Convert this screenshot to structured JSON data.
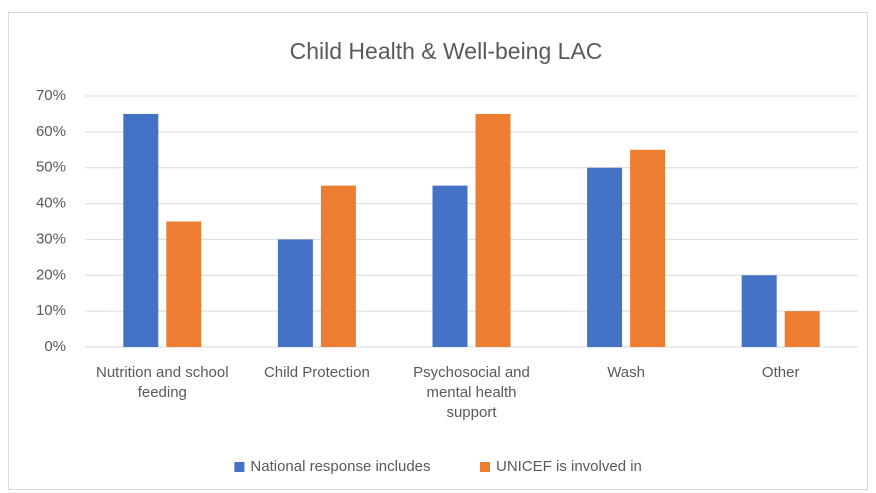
{
  "chart_data": {
    "type": "bar",
    "title": "Child Health & Well-being LAC",
    "categories": [
      "Nutrition and school feeding",
      "Child Protection",
      "Psychosocial and mental health support",
      "Wash",
      "Other"
    ],
    "series": [
      {
        "name": "National response includes",
        "color": "#4472c4",
        "values": [
          65,
          30,
          45,
          50,
          20
        ]
      },
      {
        "name": "UNICEF is involved in",
        "color": "#ed7d31",
        "values": [
          35,
          45,
          65,
          55,
          10
        ]
      }
    ],
    "ylim": [
      0,
      70
    ],
    "yticks": [
      {
        "value": 0,
        "label": "0%"
      },
      {
        "value": 10,
        "label": "10%"
      },
      {
        "value": 20,
        "label": "20%"
      },
      {
        "value": 30,
        "label": "30%"
      },
      {
        "value": 40,
        "label": "40%"
      },
      {
        "value": 50,
        "label": "50%"
      },
      {
        "value": 60,
        "label": "60%"
      },
      {
        "value": 70,
        "label": "70%"
      }
    ],
    "grid": true,
    "legend": "bottom"
  }
}
